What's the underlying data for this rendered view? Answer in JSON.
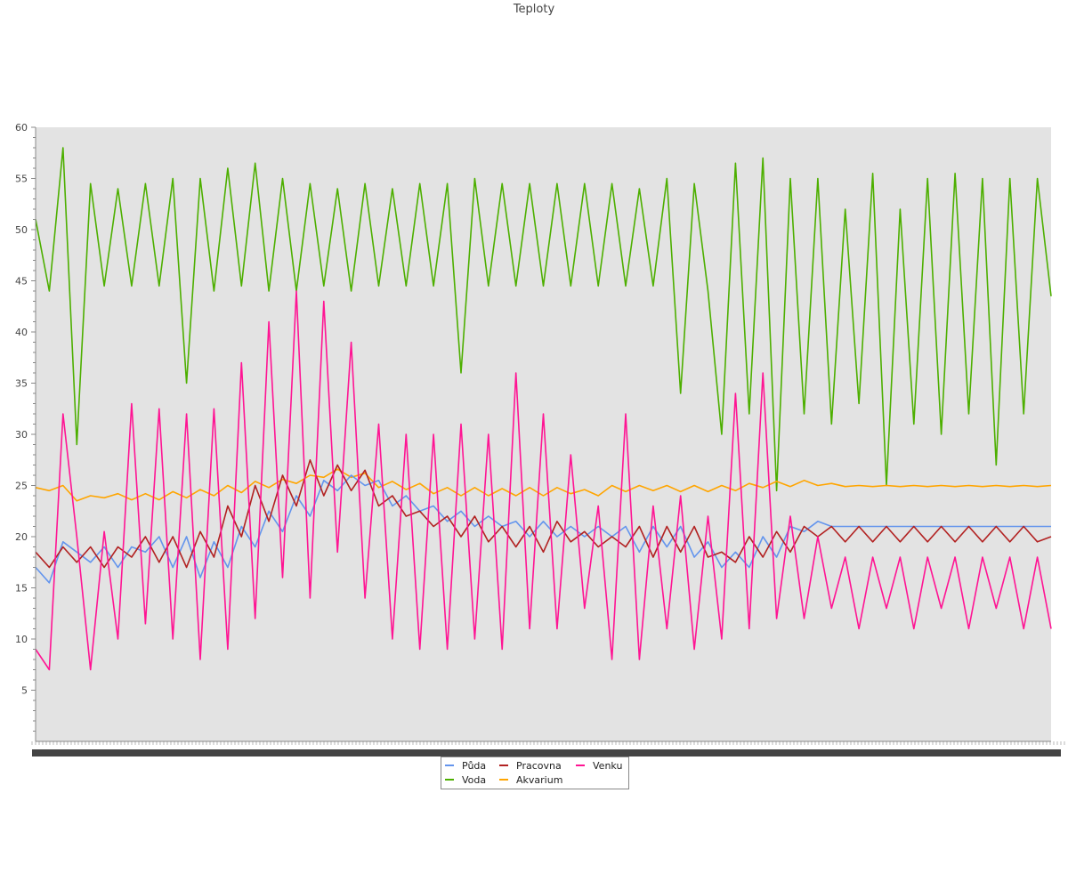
{
  "chart_data": {
    "type": "line",
    "title": "Teploty",
    "xlabel": "",
    "ylabel": "",
    "ylim": [
      0,
      60
    ],
    "y_ticks": [
      5,
      10,
      15,
      20,
      25,
      30,
      35,
      40,
      45,
      50,
      55,
      60
    ],
    "x_ticks_labels_legible": false,
    "grid": false,
    "plot_background": "#e3e3e3",
    "legend_position": "bottom-center",
    "series": [
      {
        "name": "Půda",
        "color": "#6495ed",
        "x": [
          0,
          4,
          8,
          12,
          16,
          20,
          24,
          28,
          32,
          36,
          40,
          44,
          48,
          52,
          56,
          60,
          64,
          68,
          72,
          76,
          80,
          84,
          88,
          92,
          96,
          100,
          104,
          108,
          112,
          116,
          120,
          124,
          128,
          132,
          136,
          140,
          144,
          148,
          152,
          156,
          160,
          164,
          168,
          172,
          176,
          180,
          184,
          188,
          192,
          196,
          200,
          204,
          208,
          212,
          216,
          220,
          224,
          228,
          232,
          236,
          240,
          244,
          248,
          252,
          256,
          260,
          264,
          268,
          272,
          276,
          280,
          284,
          288,
          292,
          296
        ],
        "values": [
          17.0,
          15.5,
          19.5,
          18.5,
          17.5,
          19.0,
          17.0,
          19.0,
          18.5,
          20.0,
          17.0,
          20.0,
          16.0,
          19.5,
          17.0,
          21.0,
          19.0,
          22.5,
          20.5,
          24.0,
          22.0,
          25.5,
          24.5,
          26.0,
          25.0,
          25.5,
          23.0,
          24.0,
          22.5,
          23.0,
          21.5,
          22.5,
          21.0,
          22.0,
          21.0,
          21.5,
          20.0,
          21.5,
          20.0,
          21.0,
          20.0,
          21.0,
          20.0,
          21.0,
          18.5,
          21.0,
          19.0,
          21.0,
          18.0,
          19.5,
          17.0,
          18.5,
          17.0,
          20.0,
          18.0,
          21.0,
          20.5,
          21.5,
          21.0,
          21.0,
          21.0,
          21.0,
          21.0,
          21.0,
          21.0,
          21.0,
          21.0,
          21.0,
          21.0,
          21.0,
          21.0,
          21.0,
          21.0,
          21.0,
          21.0
        ]
      },
      {
        "name": "Pracovna",
        "color": "#b22222",
        "x": [
          0,
          4,
          8,
          12,
          16,
          20,
          24,
          28,
          32,
          36,
          40,
          44,
          48,
          52,
          56,
          60,
          64,
          68,
          72,
          76,
          80,
          84,
          88,
          92,
          96,
          100,
          104,
          108,
          112,
          116,
          120,
          124,
          128,
          132,
          136,
          140,
          144,
          148,
          152,
          156,
          160,
          164,
          168,
          172,
          176,
          180,
          184,
          188,
          192,
          196,
          200,
          204,
          208,
          212,
          216,
          220,
          224,
          228,
          232,
          236,
          240,
          244,
          248,
          252,
          256,
          260,
          264,
          268,
          272,
          276,
          280,
          284,
          288,
          292,
          296
        ],
        "values": [
          18.5,
          17.0,
          19.0,
          17.5,
          19.0,
          17.0,
          19.0,
          18.0,
          20.0,
          17.5,
          20.0,
          17.0,
          20.5,
          18.0,
          23.0,
          20.0,
          25.0,
          21.5,
          26.0,
          23.0,
          27.5,
          24.0,
          27.0,
          24.5,
          26.5,
          23.0,
          24.0,
          22.0,
          22.5,
          21.0,
          22.0,
          20.0,
          22.0,
          19.5,
          21.0,
          19.0,
          21.0,
          18.5,
          21.5,
          19.5,
          20.5,
          19.0,
          20.0,
          19.0,
          21.0,
          18.0,
          21.0,
          18.5,
          21.0,
          18.0,
          18.5,
          17.5,
          20.0,
          18.0,
          20.5,
          18.5,
          21.0,
          20.0,
          21.0,
          19.5,
          21.0,
          19.5,
          21.0,
          19.5,
          21.0,
          19.5,
          21.0,
          19.5,
          21.0,
          19.5,
          21.0,
          19.5,
          21.0,
          19.5,
          20.0
        ]
      },
      {
        "name": "Venku",
        "color": "#ff1493",
        "x": [
          0,
          4,
          8,
          12,
          16,
          20,
          24,
          28,
          32,
          36,
          40,
          44,
          48,
          52,
          56,
          60,
          64,
          68,
          72,
          76,
          80,
          84,
          88,
          92,
          96,
          100,
          104,
          108,
          112,
          116,
          120,
          124,
          128,
          132,
          136,
          140,
          144,
          148,
          152,
          156,
          160,
          164,
          168,
          172,
          176,
          180,
          184,
          188,
          192,
          196,
          200,
          204,
          208,
          212,
          216,
          220,
          224,
          228,
          232,
          236,
          240,
          244,
          248,
          252,
          256,
          260,
          264,
          268,
          272,
          276,
          280,
          284,
          288,
          292,
          296
        ],
        "values": [
          9.0,
          7.0,
          32.0,
          20.0,
          7.0,
          20.5,
          10.0,
          33.0,
          11.5,
          32.5,
          10.0,
          32.0,
          8.0,
          32.5,
          9.0,
          37.0,
          12.0,
          41.0,
          16.0,
          44.0,
          14.0,
          43.0,
          18.5,
          39.0,
          14.0,
          31.0,
          10.0,
          30.0,
          9.0,
          30.0,
          9.0,
          31.0,
          10.0,
          30.0,
          9.0,
          36.0,
          11.0,
          32.0,
          11.0,
          28.0,
          13.0,
          23.0,
          8.0,
          32.0,
          8.0,
          23.0,
          11.0,
          24.0,
          9.0,
          22.0,
          10.0,
          34.0,
          11.0,
          36.0,
          12.0,
          22.0,
          12.0,
          20.0,
          13.0,
          18.0,
          11.0,
          18.0,
          13.0,
          18.0,
          11.0,
          18.0,
          13.0,
          18.0,
          11.0,
          18.0,
          13.0,
          18.0,
          11.0,
          18.0,
          11.0
        ]
      },
      {
        "name": "Voda",
        "color": "#4daf00",
        "x": [
          0,
          4,
          8,
          12,
          16,
          20,
          24,
          28,
          32,
          36,
          40,
          44,
          48,
          52,
          56,
          60,
          64,
          68,
          72,
          76,
          80,
          84,
          88,
          92,
          96,
          100,
          104,
          108,
          112,
          116,
          120,
          124,
          128,
          132,
          136,
          140,
          144,
          148,
          152,
          156,
          160,
          164,
          168,
          172,
          176,
          180,
          184,
          188,
          192,
          196,
          200,
          204,
          208,
          212,
          216,
          220,
          224,
          228,
          232,
          236,
          240,
          244,
          248,
          252,
          256,
          260,
          264,
          268,
          272,
          276,
          280,
          284,
          288,
          292,
          296
        ],
        "values": [
          51.0,
          44.0,
          58.0,
          29.0,
          54.5,
          44.5,
          54.0,
          44.5,
          54.5,
          44.5,
          55.0,
          35.0,
          55.0,
          44.0,
          56.0,
          44.5,
          56.5,
          44.0,
          55.0,
          44.0,
          54.5,
          44.5,
          54.0,
          44.0,
          54.5,
          44.5,
          54.0,
          44.5,
          54.5,
          44.5,
          54.5,
          36.0,
          55.0,
          44.5,
          54.5,
          44.5,
          54.5,
          44.5,
          54.5,
          44.5,
          54.5,
          44.5,
          54.5,
          44.5,
          54.0,
          44.5,
          55.0,
          34.0,
          54.5,
          44.0,
          30.0,
          56.5,
          32.0,
          57.0,
          24.5,
          55.0,
          32.0,
          55.0,
          31.0,
          52.0,
          33.0,
          55.5,
          25.0,
          52.0,
          31.0,
          55.0,
          30.0,
          55.5,
          32.0,
          55.0,
          27.0,
          55.0,
          32.0,
          55.0,
          43.5
        ]
      },
      {
        "name": "Akvarium",
        "color": "#ffa500",
        "x": [
          0,
          4,
          8,
          12,
          16,
          20,
          24,
          28,
          32,
          36,
          40,
          44,
          48,
          52,
          56,
          60,
          64,
          68,
          72,
          76,
          80,
          84,
          88,
          92,
          96,
          100,
          104,
          108,
          112,
          116,
          120,
          124,
          128,
          132,
          136,
          140,
          144,
          148,
          152,
          156,
          160,
          164,
          168,
          172,
          176,
          180,
          184,
          188,
          192,
          196,
          200,
          204,
          208,
          212,
          216,
          220,
          224,
          228,
          232,
          236,
          240,
          244,
          248,
          252,
          256,
          260,
          264,
          268,
          272,
          276,
          280,
          284,
          288,
          292,
          296
        ],
        "values": [
          24.8,
          24.5,
          25.0,
          23.5,
          24.0,
          23.8,
          24.2,
          23.6,
          24.2,
          23.6,
          24.4,
          23.8,
          24.6,
          24.0,
          25.0,
          24.3,
          25.4,
          24.8,
          25.6,
          25.2,
          26.0,
          25.8,
          26.6,
          25.8,
          26.2,
          24.8,
          25.4,
          24.6,
          25.2,
          24.2,
          24.8,
          24.0,
          24.8,
          24.0,
          24.7,
          24.0,
          24.8,
          24.0,
          24.8,
          24.2,
          24.6,
          24.0,
          25.0,
          24.4,
          25.0,
          24.5,
          25.0,
          24.4,
          25.0,
          24.4,
          25.0,
          24.5,
          25.2,
          24.8,
          25.4,
          24.9,
          25.5,
          25.0,
          25.2,
          24.9,
          25.0,
          24.9,
          25.0,
          24.9,
          25.0,
          24.9,
          25.0,
          24.9,
          25.0,
          24.9,
          25.0,
          24.9,
          25.0,
          24.9,
          25.0
        ]
      }
    ],
    "legend": [
      {
        "name": "Půda",
        "color": "#6495ed"
      },
      {
        "name": "Pracovna",
        "color": "#b22222"
      },
      {
        "name": "Venku",
        "color": "#ff1493"
      },
      {
        "name": "Voda",
        "color": "#4daf00"
      },
      {
        "name": "Akvarium",
        "color": "#ffa500"
      }
    ]
  }
}
